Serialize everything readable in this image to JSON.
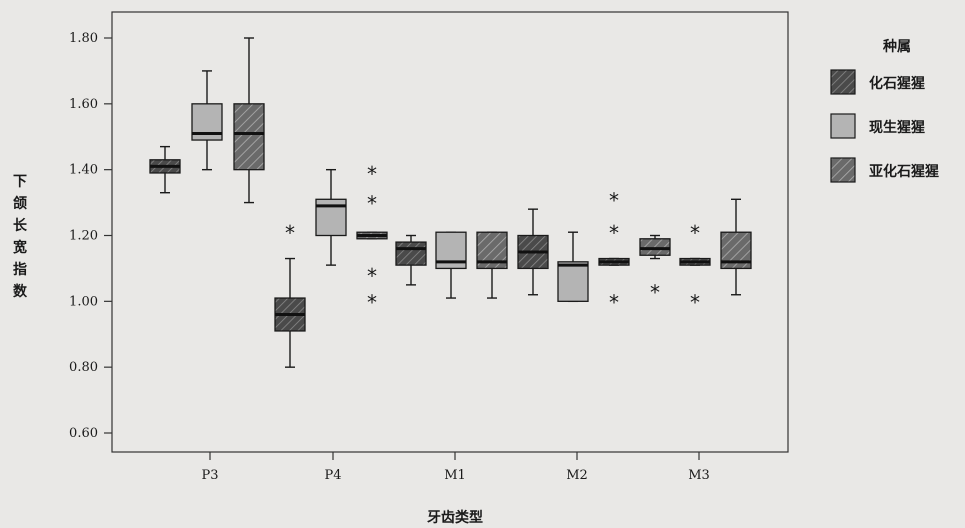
{
  "chart_data": {
    "type": "boxplot",
    "title": "",
    "xlabel": "牙齿类型",
    "ylabel": "下颌长宽指数",
    "ylim": [
      0.55,
      1.9
    ],
    "yticks": [
      "0.60",
      "0.80",
      "1.00",
      "1.20",
      "1.40",
      "1.60",
      "1.80"
    ],
    "categories": [
      "P3",
      "P4",
      "M1",
      "M2",
      "M3"
    ],
    "legend": {
      "title": "种属",
      "placement": "right",
      "items": [
        {
          "name": "化石猩猩",
          "fill": "#4d4d4d",
          "pattern": "hatch"
        },
        {
          "name": "现生猩猩",
          "fill": "#b4b4b4",
          "pattern": "solid"
        },
        {
          "name": "亚化石猩猩",
          "fill": "#6e6e6e",
          "pattern": "hatch"
        }
      ]
    },
    "boxes": [
      {
        "category": "P3",
        "series": 0,
        "min": 1.33,
        "q1": 1.39,
        "median": 1.41,
        "q3": 1.43,
        "max": 1.47,
        "outliers": []
      },
      {
        "category": "P3",
        "series": 1,
        "min": 1.4,
        "q1": 1.49,
        "median": 1.51,
        "q3": 1.6,
        "max": 1.7,
        "outliers": []
      },
      {
        "category": "P3",
        "series": 2,
        "min": 1.3,
        "q1": 1.4,
        "median": 1.51,
        "q3": 1.6,
        "max": 1.8,
        "outliers": []
      },
      {
        "category": "P4",
        "series": 0,
        "min": 0.8,
        "q1": 0.91,
        "median": 0.96,
        "q3": 1.01,
        "max": 1.13,
        "outliers": [
          1.21
        ]
      },
      {
        "category": "P4",
        "series": 1,
        "min": 1.11,
        "q1": 1.2,
        "median": 1.29,
        "q3": 1.31,
        "max": 1.4,
        "outliers": []
      },
      {
        "category": "P4",
        "series": 2,
        "min": 1.19,
        "q1": 1.19,
        "median": 1.2,
        "q3": 1.21,
        "max": 1.21,
        "outliers": [
          1.0,
          1.08,
          1.3,
          1.39
        ]
      },
      {
        "category": "M1",
        "series": 0,
        "min": 1.05,
        "q1": 1.11,
        "median": 1.16,
        "q3": 1.18,
        "max": 1.2,
        "outliers": []
      },
      {
        "category": "M1",
        "series": 1,
        "min": 1.01,
        "q1": 1.1,
        "median": 1.12,
        "q3": 1.21,
        "max": 1.21,
        "outliers": []
      },
      {
        "category": "M1",
        "series": 2,
        "min": 1.01,
        "q1": 1.1,
        "median": 1.12,
        "q3": 1.21,
        "max": 1.21,
        "outliers": []
      },
      {
        "category": "M1",
        "series": 0,
        "min": 1.02,
        "q1": 1.1,
        "median": 1.15,
        "q3": 1.2,
        "max": 1.28,
        "outliers": []
      },
      {
        "category": "M2",
        "series": 1,
        "min": 1.0,
        "q1": 1.0,
        "median": 1.11,
        "q3": 1.12,
        "max": 1.21,
        "outliers": []
      },
      {
        "category": "M2",
        "series": 0,
        "min": 1.11,
        "q1": 1.11,
        "median": 1.12,
        "q3": 1.13,
        "max": 1.13,
        "outliers": [
          1.0,
          1.21,
          1.31
        ]
      },
      {
        "category": "M3",
        "series": 2,
        "min": 1.13,
        "q1": 1.14,
        "median": 1.16,
        "q3": 1.19,
        "max": 1.2,
        "outliers": [
          1.03
        ]
      },
      {
        "category": "M3",
        "series": 0,
        "min": 1.11,
        "q1": 1.11,
        "median": 1.12,
        "q3": 1.13,
        "max": 1.13,
        "outliers": [
          1.0,
          1.21
        ]
      },
      {
        "category": "M3",
        "series": 2,
        "min": 1.02,
        "q1": 1.1,
        "median": 1.12,
        "q3": 1.21,
        "max": 1.31,
        "outliers": []
      }
    ]
  }
}
